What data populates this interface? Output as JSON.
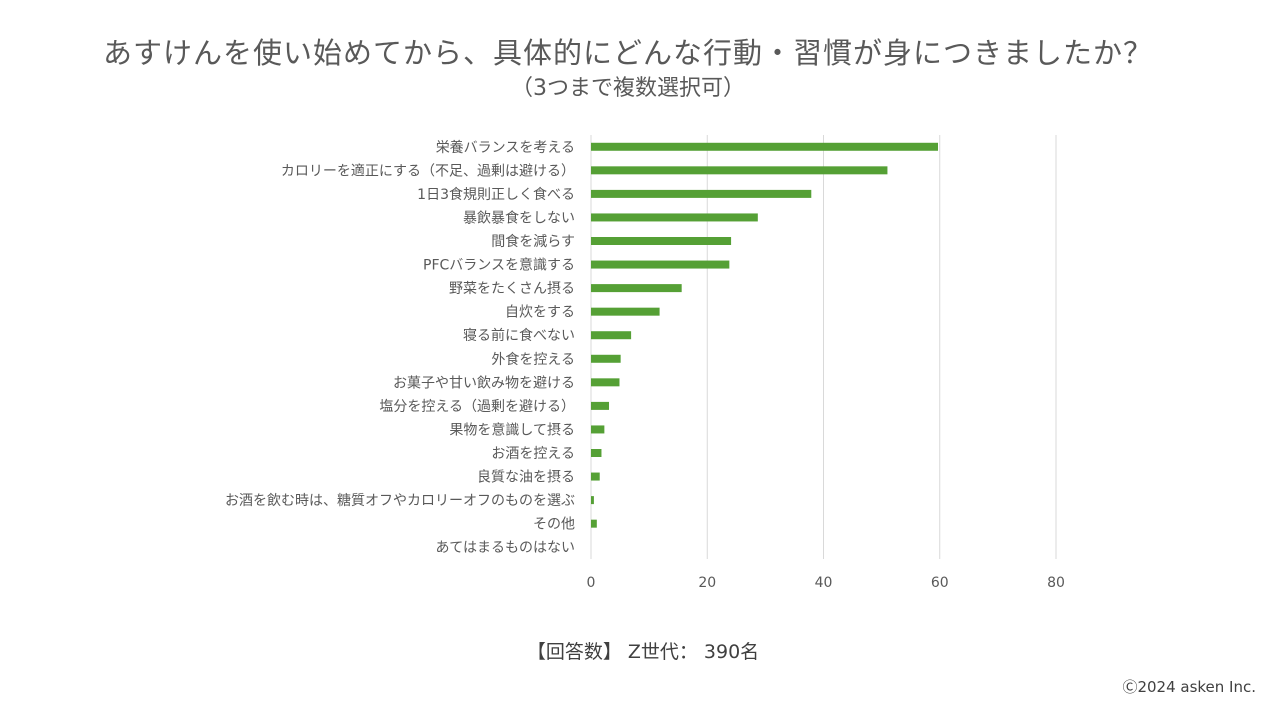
{
  "title": "あすけんを使い始めてから、具体的にどんな行動・習慣が身につきましたか？",
  "subtitle": "（3つまで複数選択可）",
  "footer_note": "【回答数】 Z世代： 390名",
  "copyright": "Ⓒ2024 asken Inc.",
  "colors": {
    "bar": "#55A035",
    "grid": "#D9D9D9",
    "text": "#595959"
  },
  "chart_data": {
    "type": "bar",
    "orientation": "horizontal",
    "title": "あすけんを使い始めてから、具体的にどんな行動・習慣が身につきましたか？",
    "subtitle": "（3つまで複数選択可）",
    "xlabel": "",
    "ylabel": "",
    "xlim": [
      0,
      80
    ],
    "xticks": [
      0,
      20,
      40,
      60,
      80
    ],
    "grid": true,
    "categories": [
      "栄養バランスを考える",
      "カロリーを適正にする（不足、過剰は避ける）",
      "1日3食規則正しく食べる",
      "暴飲暴食をしない",
      "間食を減らす",
      "PFCバランスを意識する",
      "野菜をたくさん摂る",
      "自炊をする",
      "寝る前に食べない",
      "外食を控える",
      "お菓子や甘い飲み物を避ける",
      "塩分を控える（過剰を避ける）",
      "果物を意識して摂る",
      "お酒を控える",
      "良質な油を摂る",
      "お酒を飲む時は、糖質オフやカロリーオフのものを選ぶ",
      "その他",
      "あてはまるものはない"
    ],
    "values": [
      59.7,
      51.0,
      37.9,
      28.7,
      24.1,
      23.8,
      15.6,
      11.8,
      6.9,
      5.1,
      4.9,
      3.1,
      2.3,
      1.8,
      1.5,
      0.5,
      1.0,
      0.0
    ]
  }
}
